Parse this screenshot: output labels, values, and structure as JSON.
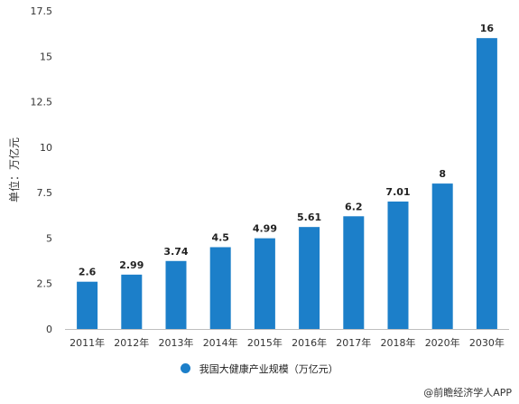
{
  "chart_data": {
    "type": "bar",
    "title": "",
    "xlabel": "",
    "ylabel": "单位：万亿元",
    "categories": [
      "2011年",
      "2012年",
      "2013年",
      "2014年",
      "2015年",
      "2016年",
      "2017年",
      "2018年",
      "2020年",
      "2030年"
    ],
    "series": [
      {
        "name": "我国大健康产业规模（万亿元）",
        "values": [
          2.6,
          2.99,
          3.74,
          4.5,
          4.99,
          5.61,
          6.2,
          7.01,
          8,
          16
        ]
      }
    ],
    "data_labels": [
      "2.6",
      "2.99",
      "3.74",
      "4.5",
      "4.99",
      "5.61",
      "6.2",
      "7.01",
      "8",
      "16"
    ],
    "ylim": [
      0,
      17.5
    ],
    "yticks": [
      "0",
      "2.5",
      "5",
      "7.5",
      "10",
      "12.5",
      "15",
      "17.5"
    ],
    "grid": false,
    "legend_position": "bottom",
    "bar_color": "#1c7fc9"
  },
  "source_text": "@前瞻经济学人APP"
}
